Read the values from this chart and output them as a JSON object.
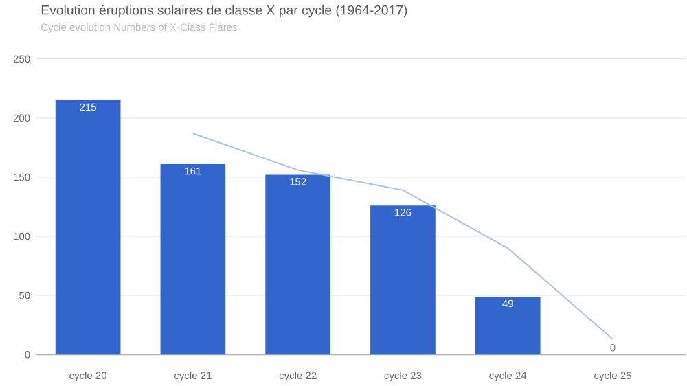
{
  "chart_data": {
    "type": "bar",
    "title": "Evolution éruptions solaires de classe X par cycle (1964-2017)",
    "subtitle": "Cycle evolution Numbers of X-Class Flares",
    "categories": [
      "cycle 20",
      "cycle 21",
      "cycle 22",
      "cycle 23",
      "cycle 24",
      "cycle 25"
    ],
    "series": [
      {
        "color": "#3366cc",
        "values": [
          215,
          161,
          152,
          126,
          49,
          0
        ],
        "value_labels": [
          "215",
          "161",
          "152",
          "126",
          "49",
          "0"
        ]
      },
      {
        "type": "line",
        "color": "#a9bfe6",
        "values": [
          null,
          187,
          156,
          139,
          90,
          13
        ]
      }
    ],
    "ylim": [
      0,
      250
    ],
    "yticks": [
      0,
      50,
      100,
      150,
      200,
      250
    ],
    "grid": "y"
  }
}
